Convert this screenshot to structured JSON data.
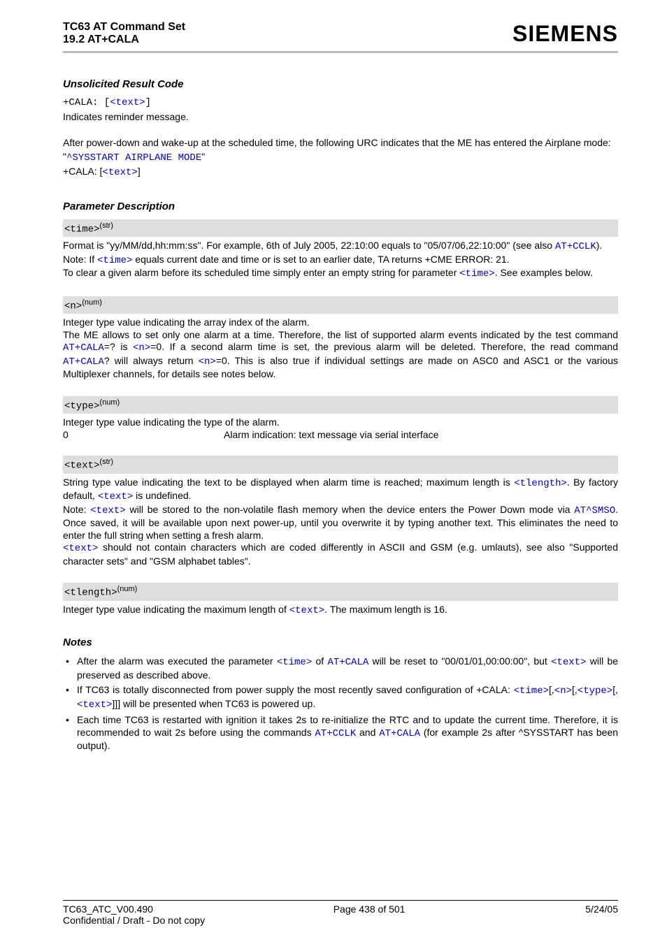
{
  "header": {
    "title": "TC63 AT Command Set",
    "subtitle": "19.2 AT+CALA",
    "brand": "SIEMENS"
  },
  "sec_urc": {
    "heading": "Unsolicited Result Code",
    "line1_a": "+CALA: [",
    "line1_b": "<text>",
    "line1_c": "]",
    "line2": "Indicates reminder message.",
    "para1": "After power-down and wake-up at the scheduled time, the following URC indicates that the ME has entered the Airplane mode:",
    "line3_a": "\"",
    "line3_b": "^SYSSTART AIRPLANE MODE",
    "line3_c": "\"",
    "line4_a": "+CALA: [",
    "line4_b": "<text>",
    "line4_c": "]"
  },
  "sec_param": {
    "heading": "Parameter Description",
    "time_label": "<time>",
    "time_sup": "(str)",
    "time_p1_a": "Format is \"yy/MM/dd,hh:mm:ss\". For example, 6th of July 2005, 22:10:00 equals to \"05/07/06,22:10:00\" (see also ",
    "time_p1_b": "AT+CCLK",
    "time_p1_c": ").",
    "time_p2_a": "Note: If ",
    "time_p2_b": "<time>",
    "time_p2_c": " equals current date and time or is set to an earlier date, TA returns +CME ERROR: 21.",
    "time_p3_a": "To clear a given alarm before its scheduled time simply enter an empty string for parameter ",
    "time_p3_b": "<time>",
    "time_p3_c": ". See examples below.",
    "n_label": "<n>",
    "n_sup": "(num)",
    "n_p1": "Integer type value indicating the array index of the alarm.",
    "n_p2_a": "The ME allows to set only one alarm at a time. Therefore, the list of supported alarm events indicated by the test command ",
    "n_p2_b": "AT+CALA",
    "n_p2_c": "=? is ",
    "n_p2_d": "<n>",
    "n_p2_e": "=0. If a second alarm time is set, the previous alarm will be deleted. Therefore, the read command ",
    "n_p2_f": "AT+CALA",
    "n_p2_g": "? will always return ",
    "n_p2_h": "<n>",
    "n_p2_i": "=0. This is also true if individual settings are made on ASC0 and ASC1 or the various Multiplexer channels, for details see notes below.",
    "type_label": "<type>",
    "type_sup": "(num)",
    "type_p1": "Integer type value indicating the type of the alarm.",
    "type_val_k": "0",
    "type_val_v": "Alarm indication: text message via serial interface",
    "text_label": "<text>",
    "text_sup": "(str)",
    "text_p1_a": "String type value indicating the text to be displayed when alarm time is reached; maximum length is ",
    "text_p1_b": "<tlength>",
    "text_p1_c": ". By factory default, ",
    "text_p1_d": "<text>",
    "text_p1_e": " is undefined.",
    "text_p2_a": "Note: ",
    "text_p2_b": "<text>",
    "text_p2_c": " will be stored to the non-volatile flash memory when the device enters the Power Down mode via ",
    "text_p2_d": "AT^SMSO",
    "text_p2_e": ". Once saved, it will be available upon next power-up, until you overwrite it by typing another text. This eliminates the need to enter the full string when setting a fresh alarm.",
    "text_p3_a": "<text>",
    "text_p3_b": " should not contain characters which are coded differently in ASCII and GSM (e.g. umlauts), see also \"Supported character sets\" and \"GSM alphabet tables\".",
    "tlen_label": "<tlength>",
    "tlen_sup": "(num)",
    "tlen_p1_a": "Integer type value indicating the maximum length of ",
    "tlen_p1_b": "<text>",
    "tlen_p1_c": ". The maximum length is 16."
  },
  "sec_notes": {
    "heading": "Notes",
    "n1_a": "After the alarm was executed the parameter ",
    "n1_b": "<time>",
    "n1_c": " of ",
    "n1_d": "AT+CALA",
    "n1_e": " will be reset to \"00/01/01,00:00:00\", but ",
    "n1_f": "<text>",
    "n1_g": " will be preserved as described above.",
    "n2_a": "If TC63 is totally disconnected from power supply the most recently saved configuration of +CALA: ",
    "n2_b": "<time>",
    "n2_c": "[,",
    "n2_d": "<n>",
    "n2_e": "[,",
    "n2_f": "<type>",
    "n2_g": "[,",
    "n2_h": "<text>",
    "n2_i": "]]] will be presented when TC63 is powered up.",
    "n3_a": "Each time TC63 is restarted with ignition it takes 2s to re-initialize the RTC and to update the current time. Therefore, it is recommended to wait 2s before using the commands ",
    "n3_b": "AT+CCLK",
    "n3_c": " and ",
    "n3_d": "AT+CALA",
    "n3_e": " (for example 2s after ^SYSSTART has been output)."
  },
  "footer": {
    "left": "TC63_ATC_V00.490",
    "center": "Page 438 of 501",
    "right": "5/24/05",
    "sub": "Confidential / Draft - Do not copy"
  }
}
